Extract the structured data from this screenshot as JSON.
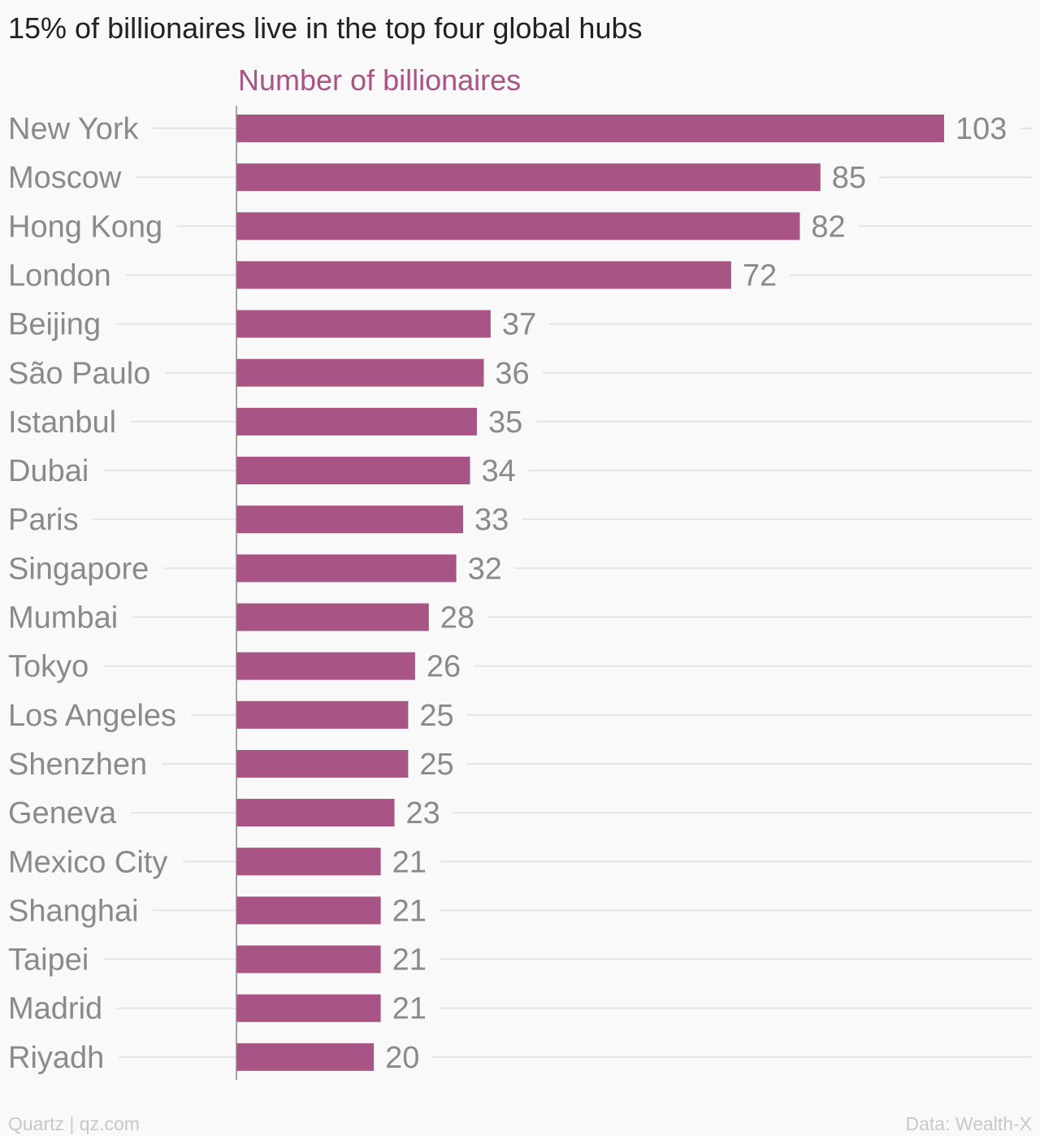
{
  "chart_data": {
    "type": "bar",
    "orientation": "horizontal",
    "title": "15% of billionaires live in the top four global hubs",
    "series_label": "Number of billionaires",
    "categories": [
      "New York",
      "Moscow",
      "Hong Kong",
      "London",
      "Beijing",
      "São Paulo",
      "Istanbul",
      "Dubai",
      "Paris",
      "Singapore",
      "Mumbai",
      "Tokyo",
      "Los Angeles",
      "Shenzhen",
      "Geneva",
      "Mexico City",
      "Shanghai",
      "Taipei",
      "Madrid",
      "Riyadh"
    ],
    "values": [
      103,
      85,
      82,
      72,
      37,
      36,
      35,
      34,
      33,
      32,
      28,
      26,
      25,
      25,
      23,
      21,
      21,
      21,
      21,
      20
    ],
    "xlim": [
      0,
      114
    ],
    "grid": true,
    "data_labels": true
  },
  "footer": {
    "source_left": "Quartz | qz.com",
    "source_right": "Data: Wealth-X"
  },
  "colors": {
    "bar": "#a85585",
    "series_label": "#a85585",
    "category_text": "#8a8a8a",
    "value_text": "#8a8a8a",
    "grid": "#e4e4e4",
    "axis": "#888888"
  }
}
